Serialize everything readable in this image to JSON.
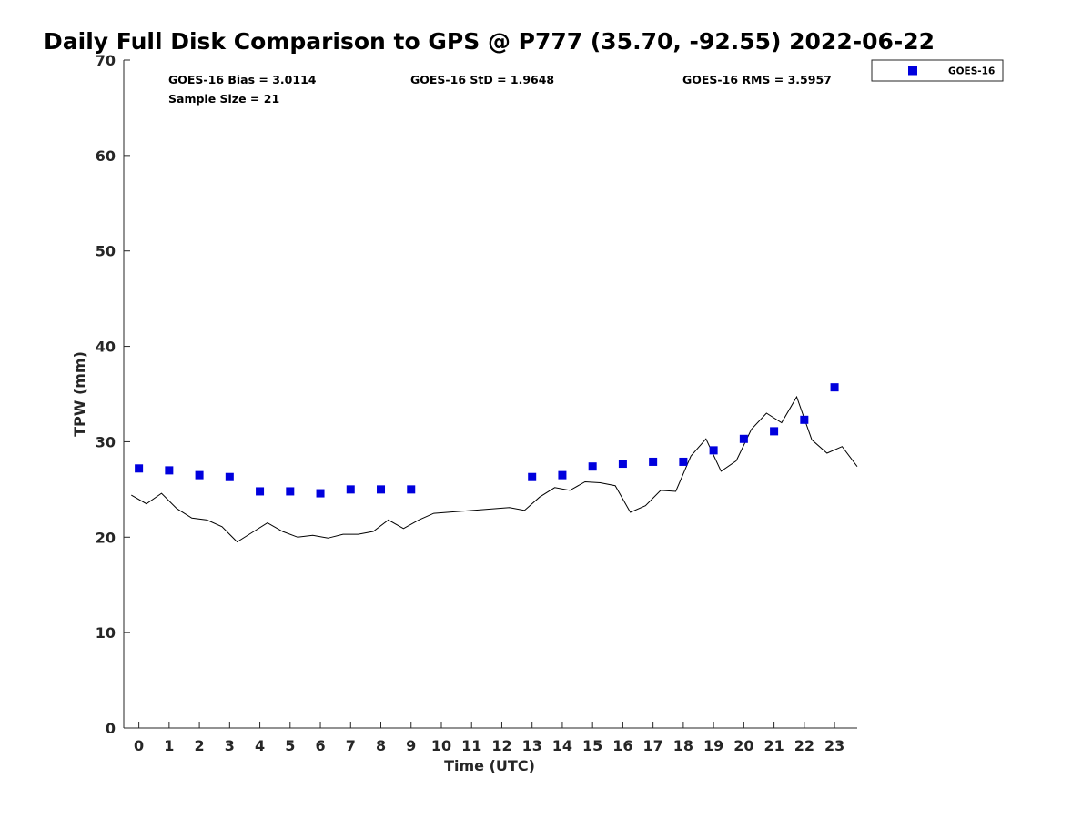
{
  "chart_data": {
    "type": "scatter",
    "title": "Daily Full Disk Comparison to GPS @ P777 (35.70, -92.55) 2022-06-22",
    "xlabel": "Time (UTC)",
    "ylabel": "TPW (mm)",
    "xlim": [
      -0.5,
      23.75
    ],
    "ylim": [
      0,
      70
    ],
    "x_ticks": [
      0,
      1,
      2,
      3,
      4,
      5,
      6,
      7,
      8,
      9,
      10,
      11,
      12,
      13,
      14,
      15,
      16,
      17,
      18,
      19,
      20,
      21,
      22,
      23
    ],
    "y_ticks": [
      0,
      10,
      20,
      30,
      40,
      50,
      60,
      70
    ],
    "grid": false,
    "legend_position": "top-right",
    "stats": {
      "bias": "GOES-16 Bias = 3.0114",
      "std": "GOES-16 StD = 1.9648",
      "rms": "GOES-16 RMS = 3.5957",
      "sample": "Sample Size = 21"
    },
    "series": [
      {
        "name": "GOES-16",
        "kind": "scatter",
        "color": "#0000dd",
        "x": [
          0,
          1,
          2,
          3,
          4,
          5,
          6,
          7,
          8,
          9,
          13,
          14,
          15,
          16,
          17,
          18,
          19,
          20,
          21,
          22,
          23
        ],
        "y": [
          27.2,
          27.0,
          26.5,
          26.3,
          24.8,
          24.8,
          24.6,
          25.0,
          25.0,
          25.0,
          26.3,
          26.5,
          27.4,
          27.7,
          27.9,
          27.9,
          29.1,
          30.3,
          31.1,
          32.3,
          35.7
        ]
      },
      {
        "kind": "line",
        "color": "#000000",
        "x": [
          -0.25,
          0.25,
          0.75,
          1.25,
          1.75,
          2.25,
          2.75,
          3.25,
          3.75,
          4.25,
          4.75,
          5.25,
          5.75,
          6.25,
          6.75,
          7.25,
          7.75,
          8.25,
          8.75,
          9.25,
          9.75,
          12.25,
          12.75,
          13.25,
          13.75,
          14.25,
          14.75,
          15.25,
          15.75,
          16.25,
          16.75,
          17.25,
          17.75,
          18.25,
          18.75,
          19.25,
          19.75,
          20.25,
          20.75,
          21.25,
          21.75,
          22.25,
          22.75,
          23.25,
          23.75
        ],
        "y": [
          24.4,
          23.5,
          24.6,
          23.0,
          22.0,
          21.8,
          21.1,
          19.5,
          20.5,
          21.5,
          20.6,
          20.0,
          20.2,
          19.9,
          20.3,
          20.3,
          20.6,
          21.8,
          20.9,
          21.8,
          22.5,
          23.1,
          22.8,
          24.2,
          25.2,
          24.9,
          25.8,
          25.7,
          25.4,
          22.6,
          23.3,
          24.9,
          24.8,
          28.5,
          30.3,
          26.9,
          28.0,
          31.3,
          33.0,
          32.0,
          34.7,
          30.2,
          28.8,
          29.5,
          27.4
        ]
      }
    ]
  }
}
